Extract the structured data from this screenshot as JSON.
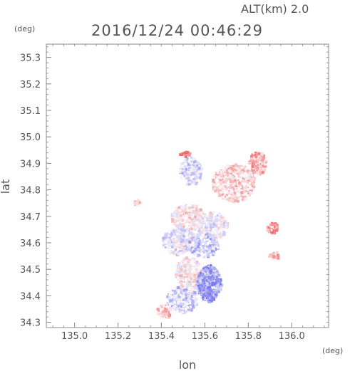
{
  "header": {
    "altitude_label": "ALT(km) 2.0",
    "timestamp": "2016/12/24 00:46:29",
    "unit_y": "(deg)",
    "unit_x": "(deg)"
  },
  "chart_data": {
    "type": "heatmap",
    "xlabel": "lon",
    "ylabel": "lat",
    "xlim": [
      134.87,
      136.17
    ],
    "ylim": [
      34.28,
      35.35
    ],
    "x_ticks": [
      "135.0",
      "135.2",
      "135.4",
      "135.6",
      "135.8",
      "136.0"
    ],
    "x_tick_values": [
      135.0,
      135.2,
      135.4,
      135.6,
      135.8,
      136.0
    ],
    "y_ticks": [
      "35.3",
      "35.2",
      "35.1",
      "35.0",
      "34.9",
      "34.8",
      "34.7",
      "34.6",
      "34.5",
      "34.4",
      "34.3"
    ],
    "y_tick_values": [
      35.3,
      35.2,
      35.1,
      35.0,
      34.9,
      34.8,
      34.7,
      34.6,
      34.5,
      34.4,
      34.3
    ],
    "grid": false,
    "colors": {
      "positive": "#e84a4a",
      "negative": "#5a5ae8",
      "neutral": "#ece8f3",
      "axis": "#888888"
    },
    "regions": [
      {
        "lon": [
          135.48,
          135.58
        ],
        "lat": [
          34.82,
          34.93
        ],
        "intensity": -0.25
      },
      {
        "lon": [
          135.63,
          135.83
        ],
        "lat": [
          34.76,
          34.9
        ],
        "intensity": 0.25
      },
      {
        "lon": [
          135.8,
          135.88
        ],
        "lat": [
          34.86,
          34.95
        ],
        "intensity": 0.5
      },
      {
        "lon": [
          135.44,
          135.6
        ],
        "lat": [
          34.65,
          34.75
        ],
        "intensity": 0.15
      },
      {
        "lon": [
          135.56,
          135.7
        ],
        "lat": [
          34.62,
          34.72
        ],
        "intensity": -0.05
      },
      {
        "lon": [
          135.4,
          135.56
        ],
        "lat": [
          34.56,
          34.66
        ],
        "intensity": -0.15
      },
      {
        "lon": [
          135.52,
          135.66
        ],
        "lat": [
          34.55,
          34.64
        ],
        "intensity": -0.35
      },
      {
        "lon": [
          135.46,
          135.58
        ],
        "lat": [
          34.42,
          34.55
        ],
        "intensity": 0.1
      },
      {
        "lon": [
          135.56,
          135.67
        ],
        "lat": [
          34.38,
          34.52
        ],
        "intensity": -0.75
      },
      {
        "lon": [
          135.42,
          135.56
        ],
        "lat": [
          34.34,
          34.44
        ],
        "intensity": -0.3
      },
      {
        "lon": [
          135.37,
          135.44
        ],
        "lat": [
          34.32,
          34.37
        ],
        "intensity": 0.35
      },
      {
        "lon": [
          135.88,
          135.93
        ],
        "lat": [
          34.64,
          34.68
        ],
        "intensity": 0.8
      },
      {
        "lon": [
          135.89,
          135.94
        ],
        "lat": [
          34.54,
          34.57
        ],
        "intensity": 0.5
      },
      {
        "lon": [
          135.27,
          135.3
        ],
        "lat": [
          34.74,
          34.77
        ],
        "intensity": 0.4
      },
      {
        "lon": [
          135.48,
          135.53
        ],
        "lat": [
          34.93,
          34.95
        ],
        "intensity": 0.9
      }
    ]
  }
}
